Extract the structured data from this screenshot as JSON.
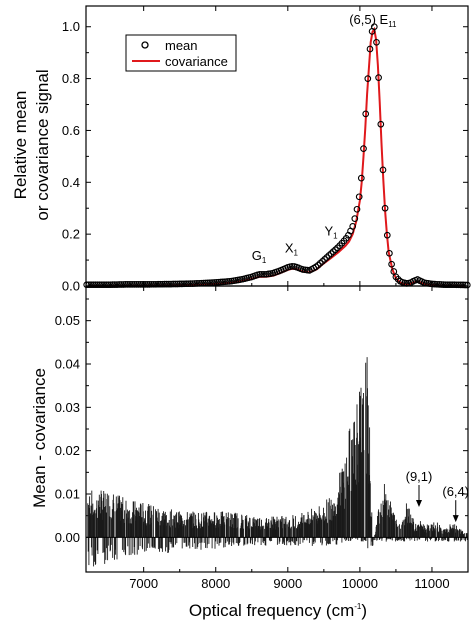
{
  "chart_data": [
    {
      "type": "scatter",
      "panel": "top",
      "ylabel_lines": [
        "Relative mean",
        "or covariance signal"
      ],
      "xlim": [
        6200,
        11500
      ],
      "ylim": [
        0,
        1.08
      ],
      "yticks": [
        "0.0",
        "0.2",
        "0.4",
        "0.6",
        "0.8",
        "1.0"
      ],
      "ytick_values": [
        0,
        0.2,
        0.4,
        0.6,
        0.8,
        1.0
      ],
      "legend": {
        "position": "top-left",
        "entries": [
          "mean",
          "covariance"
        ]
      },
      "series": [
        {
          "name": "mean",
          "marker": "open-circle",
          "color": "#000000",
          "x": [
            6250,
            6500,
            6750,
            7000,
            7250,
            7500,
            7750,
            8000,
            8200,
            8350,
            8500,
            8600,
            8700,
            8800,
            8900,
            9000,
            9050,
            9100,
            9150,
            9200,
            9300,
            9400,
            9500,
            9600,
            9700,
            9800,
            9850,
            9900,
            9950,
            10000,
            10025,
            10050,
            10075,
            10100,
            10125,
            10150,
            10175,
            10200,
            10225,
            10250,
            10275,
            10300,
            10325,
            10350,
            10375,
            10400,
            10450,
            10500,
            10550,
            10600,
            10650,
            10700,
            10750,
            10800,
            10850,
            10900,
            11000,
            11100,
            11200,
            11300,
            11450
          ],
          "y": [
            0.005,
            0.005,
            0.006,
            0.006,
            0.007,
            0.008,
            0.01,
            0.014,
            0.018,
            0.025,
            0.035,
            0.045,
            0.045,
            0.05,
            0.06,
            0.072,
            0.076,
            0.075,
            0.07,
            0.064,
            0.06,
            0.075,
            0.1,
            0.125,
            0.15,
            0.18,
            0.2,
            0.23,
            0.28,
            0.36,
            0.43,
            0.53,
            0.64,
            0.76,
            0.86,
            0.95,
            0.99,
            1.0,
            0.96,
            0.86,
            0.72,
            0.56,
            0.42,
            0.3,
            0.21,
            0.14,
            0.07,
            0.035,
            0.02,
            0.013,
            0.01,
            0.012,
            0.02,
            0.025,
            0.018,
            0.012,
            0.008,
            0.006,
            0.005,
            0.005,
            0.004
          ]
        },
        {
          "name": "covariance",
          "marker": "line",
          "color": "#e0191c",
          "x": [
            6250,
            6500,
            6750,
            7000,
            7250,
            7500,
            7750,
            8000,
            8200,
            8350,
            8500,
            8600,
            8700,
            8800,
            8900,
            9000,
            9050,
            9100,
            9150,
            9200,
            9300,
            9400,
            9500,
            9600,
            9700,
            9800,
            9850,
            9900,
            9950,
            10000,
            10025,
            10050,
            10075,
            10100,
            10125,
            10150,
            10175,
            10200,
            10225,
            10250,
            10275,
            10300,
            10325,
            10350,
            10375,
            10400,
            10450,
            10500,
            10550,
            10600,
            10650,
            10700,
            10750,
            10800,
            10850,
            10900,
            11000,
            11100,
            11200,
            11300,
            11450
          ],
          "y": [
            0.0,
            0.0,
            0.001,
            0.001,
            0.002,
            0.003,
            0.005,
            0.008,
            0.012,
            0.018,
            0.027,
            0.035,
            0.036,
            0.04,
            0.05,
            0.062,
            0.066,
            0.066,
            0.062,
            0.056,
            0.052,
            0.064,
            0.087,
            0.108,
            0.13,
            0.155,
            0.172,
            0.2,
            0.25,
            0.33,
            0.4,
            0.5,
            0.61,
            0.74,
            0.84,
            0.94,
            0.98,
            0.99,
            0.95,
            0.85,
            0.71,
            0.55,
            0.41,
            0.29,
            0.2,
            0.13,
            0.065,
            0.03,
            0.015,
            0.008,
            0.006,
            0.008,
            0.014,
            0.018,
            0.012,
            0.007,
            0.004,
            0.002,
            0.001,
            0.001,
            0.0
          ]
        }
      ],
      "annotations": [
        {
          "base": "G",
          "sub": "1",
          "x": 8600,
          "y": 0.1
        },
        {
          "base": "X",
          "sub": "1",
          "x": 9050,
          "y": 0.13
        },
        {
          "base": "Y",
          "sub": "1",
          "x": 9600,
          "y": 0.195
        },
        {
          "base": "(6,5) E",
          "sub": "11",
          "x": 10180,
          "y": 1.01
        }
      ]
    },
    {
      "type": "bar",
      "panel": "bottom",
      "ylabel": "Mean - covariance",
      "xlabel": "Optical frequency (cm",
      "xlabel_sup": "-1",
      "xlabel_close": ")",
      "xlim": [
        6200,
        11500
      ],
      "ylim": [
        -0.008,
        0.058
      ],
      "xticks": [
        "7000",
        "8000",
        "9000",
        "10000",
        "11000"
      ],
      "xtick_values": [
        7000,
        8000,
        9000,
        10000,
        11000
      ],
      "yticks": [
        "0.00",
        "0.01",
        "0.02",
        "0.03",
        "0.04",
        "0.05"
      ],
      "ytick_values": [
        0,
        0.01,
        0.02,
        0.03,
        0.04,
        0.05
      ],
      "envelope": {
        "x": [
          6250,
          6500,
          6750,
          7000,
          7250,
          7500,
          7750,
          8000,
          8250,
          8500,
          8750,
          9000,
          9250,
          9500,
          9600,
          9700,
          9800,
          9850,
          9900,
          9950,
          10000,
          10050,
          10080,
          10100,
          10130,
          10150,
          10180,
          10200,
          10250,
          10300,
          10350,
          10400,
          10450,
          10500,
          10550,
          10600,
          10650,
          10700,
          10750,
          10800,
          10850,
          10900,
          10950,
          11000,
          11050,
          11100,
          11150,
          11200,
          11250,
          11300,
          11350,
          11400,
          11450
        ],
        "pos": [
          0.011,
          0.011,
          0.009,
          0.008,
          0.007,
          0.006,
          0.006,
          0.006,
          0.006,
          0.005,
          0.005,
          0.005,
          0.006,
          0.008,
          0.01,
          0.014,
          0.02,
          0.025,
          0.03,
          0.033,
          0.035,
          0.038,
          0.042,
          0.042,
          0.03,
          0.012,
          0.0,
          0.0,
          0.006,
          0.01,
          0.013,
          0.01,
          0.007,
          0.005,
          0.004,
          0.006,
          0.009,
          0.007,
          0.004,
          0.003,
          0.004,
          0.003,
          0.003,
          0.003,
          0.004,
          0.003,
          0.002,
          0.002,
          0.003,
          0.003,
          0.003,
          0.002,
          0.001
        ],
        "neg": [
          -0.007,
          -0.006,
          -0.005,
          -0.005,
          -0.004,
          -0.003,
          -0.003,
          -0.003,
          -0.002,
          -0.002,
          -0.002,
          -0.002,
          -0.002,
          -0.002,
          -0.002,
          -0.002,
          -0.001,
          -0.001,
          -0.001,
          -0.001,
          -0.001,
          -0.001,
          -0.001,
          -0.002,
          -0.004,
          -0.004,
          -0.002,
          -0.001,
          -0.001,
          -0.001,
          -0.001,
          -0.001,
          -0.001,
          -0.001,
          -0.001,
          -0.001,
          -0.001,
          -0.001,
          -0.001,
          -0.001,
          -0.001,
          -0.001,
          -0.001,
          -0.001,
          -0.001,
          -0.001,
          -0.001,
          -0.001,
          -0.001,
          -0.001,
          -0.001,
          -0.001,
          -0.001
        ]
      },
      "annotations": [
        {
          "label": "(9,1)",
          "x": 10820,
          "y": 0.013,
          "arrow_to": 0.007
        },
        {
          "label": "(6,4)",
          "x": 11330,
          "y": 0.0095,
          "arrow_to": 0.0035
        }
      ]
    }
  ]
}
